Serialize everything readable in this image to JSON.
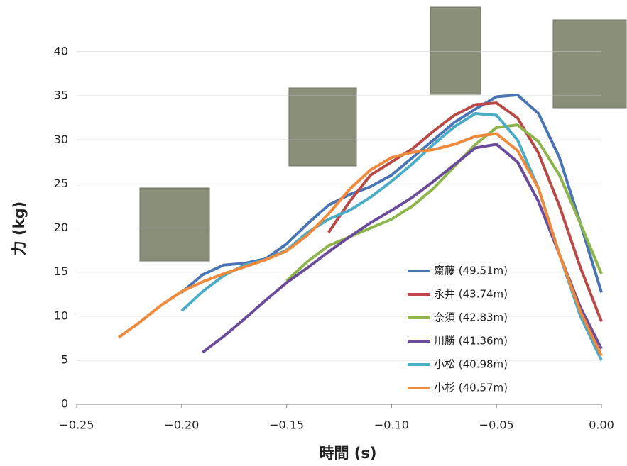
{
  "chart_data": {
    "type": "line",
    "xlabel": "時間 (s)",
    "ylabel": "力 (kg)",
    "x": [
      -0.23,
      -0.22,
      -0.21,
      -0.2,
      -0.19,
      -0.18,
      -0.17,
      -0.16,
      -0.15,
      -0.14,
      -0.13,
      -0.12,
      -0.11,
      -0.1,
      -0.09,
      -0.08,
      -0.07,
      -0.06,
      -0.05,
      -0.04,
      -0.03,
      -0.02,
      -0.01,
      0.0
    ],
    "series": [
      {
        "name": "齋藤 (49.51m)",
        "color": "#4a74b4",
        "values": [
          null,
          null,
          null,
          12.7,
          14.7,
          15.8,
          16.0,
          16.5,
          18.2,
          20.5,
          22.6,
          23.8,
          24.7,
          26.0,
          28.0,
          30.0,
          32.0,
          33.5,
          34.9,
          35.1,
          33.0,
          28.0,
          20.5,
          12.7
        ]
      },
      {
        "name": "永井 (43.74m)",
        "color": "#b84a47",
        "values": [
          null,
          null,
          null,
          null,
          null,
          null,
          null,
          null,
          null,
          null,
          19.5,
          23.0,
          26.0,
          27.5,
          29.0,
          31.0,
          32.8,
          34.0,
          34.2,
          32.5,
          28.5,
          22.5,
          15.5,
          9.4
        ]
      },
      {
        "name": "奈須 (42.83m)",
        "color": "#8db54c",
        "values": [
          null,
          null,
          null,
          null,
          null,
          null,
          null,
          null,
          14.0,
          16.2,
          18.0,
          19.0,
          20.0,
          21.0,
          22.5,
          24.5,
          27.0,
          29.5,
          31.4,
          31.7,
          29.8,
          26.0,
          20.5,
          14.8
        ]
      },
      {
        "name": "川勝 (41.36m)",
        "color": "#6b4c9a",
        "values": [
          null,
          null,
          null,
          null,
          5.9,
          7.7,
          9.7,
          11.8,
          13.8,
          15.5,
          17.3,
          19.0,
          20.6,
          22.0,
          23.5,
          25.3,
          27.2,
          29.1,
          29.5,
          27.5,
          23.0,
          17.0,
          11.0,
          6.3
        ]
      },
      {
        "name": "小松 (40.98m)",
        "color": "#4bacc6",
        "values": [
          null,
          null,
          null,
          10.6,
          12.8,
          14.6,
          15.8,
          16.4,
          17.5,
          19.5,
          21.0,
          22.0,
          23.5,
          25.3,
          27.3,
          29.5,
          31.5,
          33.0,
          32.8,
          30.0,
          24.5,
          17.0,
          10.0,
          5.0
        ]
      },
      {
        "name": "小杉 (40.57m)",
        "color": "#ef8a3c",
        "values": [
          7.6,
          9.3,
          11.2,
          12.8,
          13.9,
          14.8,
          15.6,
          16.4,
          17.4,
          19.2,
          21.6,
          24.4,
          26.6,
          28.0,
          28.6,
          28.9,
          29.5,
          30.4,
          30.7,
          28.8,
          24.5,
          17.0,
          10.5,
          5.5
        ]
      }
    ],
    "xlim": [
      -0.25,
      0.0
    ],
    "xticks": [
      {
        "value": -0.25,
        "label": "−0.25"
      },
      {
        "value": -0.2,
        "label": "−0.20"
      },
      {
        "value": -0.15,
        "label": "−0.15"
      },
      {
        "value": -0.1,
        "label": "−0.10"
      },
      {
        "value": -0.05,
        "label": "−0.05"
      },
      {
        "value": 0.0,
        "label": "0.00"
      }
    ],
    "ylim": [
      0,
      40
    ],
    "yticks": [
      0,
      5,
      10,
      15,
      20,
      25,
      30,
      35,
      40
    ],
    "grid": true,
    "legend": "lower right"
  }
}
